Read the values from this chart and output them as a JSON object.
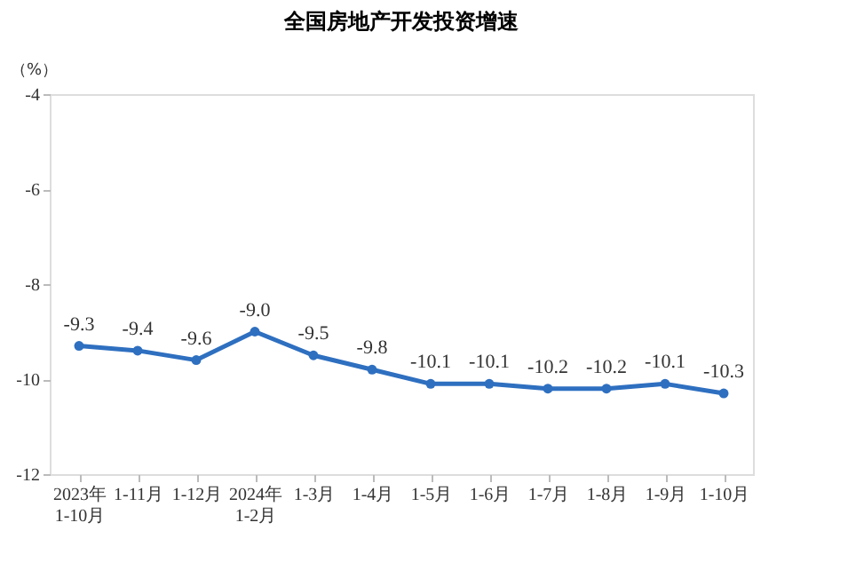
{
  "chart_data": {
    "type": "line",
    "title": "全国房地产开发投资增速",
    "ylabel": "（%）",
    "categories": [
      "2023年\n1-10月",
      "1-11月",
      "1-12月",
      "2024年\n1-2月",
      "1-3月",
      "1-4月",
      "1-5月",
      "1-6月",
      "1-7月",
      "1-8月",
      "1-9月",
      "1-10月"
    ],
    "series": [
      {
        "color": "#2e6fc0",
        "values": [
          -9.3,
          -9.4,
          -9.6,
          -9.0,
          -9.5,
          -9.8,
          -10.1,
          -10.1,
          -10.2,
          -10.2,
          -10.1,
          -10.3
        ],
        "value_labels": [
          "-9.3",
          "-9.4",
          "-9.6",
          "-9.0",
          "-9.5",
          "-9.8",
          "-10.1",
          "-10.1",
          "-10.2",
          "-10.2",
          "-10.1",
          "-10.3"
        ]
      }
    ],
    "ylim": [
      -12,
      -4
    ],
    "yticks": [
      -12,
      -10,
      -8,
      -6,
      -4
    ],
    "grid": false,
    "legend": false,
    "marker": "circle",
    "line_style": "solid"
  }
}
